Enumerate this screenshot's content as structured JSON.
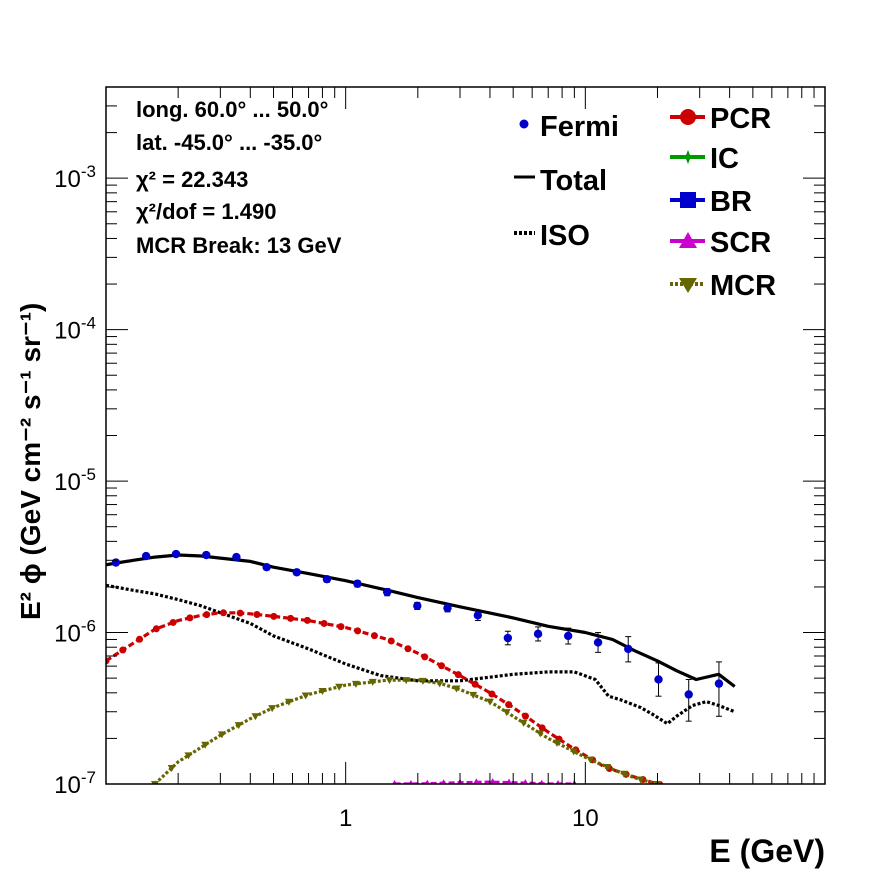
{
  "chart_data": {
    "type": "line",
    "xlabel": "E (GeV)",
    "ylabel": "E² ϕ (GeV cm⁻² s⁻¹ sr⁻¹)",
    "x_scale": "log",
    "y_scale": "log",
    "xlim": [
      0.1,
      100
    ],
    "ylim": [
      1e-07,
      0.004
    ],
    "x_tick_labels": [
      "1",
      "10"
    ],
    "y_tick_labels": [
      {
        "base": "10",
        "exp": "-7",
        "value": 1e-07
      },
      {
        "base": "10",
        "exp": "-6",
        "value": 1e-06
      },
      {
        "base": "10",
        "exp": "-5",
        "value": 1e-05
      },
      {
        "base": "10",
        "exp": "-4",
        "value": 0.0001
      },
      {
        "base": "10",
        "exp": "-3",
        "value": 0.001
      }
    ],
    "annotations": [
      "long. 60.0° ... 50.0°",
      "lat. -45.0° ... -35.0°",
      "χ² = 22.343",
      "χ²/dof = 1.490",
      "MCR Break: 13 GeV"
    ],
    "legend_left": [
      {
        "label": "Fermi",
        "marker": "dot"
      },
      {
        "label": "Total",
        "marker": "line"
      },
      {
        "label": "ISO",
        "marker": "dotted"
      }
    ],
    "legend_right": [
      {
        "label": "PCR",
        "color": "#cc0000",
        "marker": "circle"
      },
      {
        "label": "IC",
        "color": "#009900",
        "marker": "star"
      },
      {
        "label": "BR",
        "color": "#0000cc",
        "marker": "square"
      },
      {
        "label": "SCR",
        "color": "#cc00cc",
        "marker": "triangle-up"
      },
      {
        "label": "MCR",
        "color": "#666600",
        "marker": "triangle-down"
      }
    ],
    "fermi": {
      "name": "Fermi",
      "color": "#0000cc",
      "points": [
        {
          "x": 0.11,
          "y": 2.9e-06,
          "err": [
            2.8e-06,
            3e-06
          ]
        },
        {
          "x": 0.147,
          "y": 3.2e-06,
          "err": [
            3.1e-06,
            3.3e-06
          ]
        },
        {
          "x": 0.196,
          "y": 3.3e-06,
          "err": [
            3.2e-06,
            3.4e-06
          ]
        },
        {
          "x": 0.262,
          "y": 3.25e-06,
          "err": [
            3.15e-06,
            3.35e-06
          ]
        },
        {
          "x": 0.35,
          "y": 3.15e-06,
          "err": [
            3.05e-06,
            3.25e-06
          ]
        },
        {
          "x": 0.468,
          "y": 2.7e-06,
          "err": [
            2.6e-06,
            2.8e-06
          ]
        },
        {
          "x": 0.625,
          "y": 2.5e-06,
          "err": [
            2.4e-06,
            2.6e-06
          ]
        },
        {
          "x": 0.835,
          "y": 2.25e-06,
          "err": [
            2.15e-06,
            2.35e-06
          ]
        },
        {
          "x": 1.12,
          "y": 2.1e-06,
          "err": [
            2e-06,
            2.2e-06
          ]
        },
        {
          "x": 1.49,
          "y": 1.85e-06,
          "err": [
            1.75e-06,
            1.95e-06
          ]
        },
        {
          "x": 1.99,
          "y": 1.5e-06,
          "err": [
            1.42e-06,
            1.58e-06
          ]
        },
        {
          "x": 2.66,
          "y": 1.45e-06,
          "err": [
            1.37e-06,
            1.53e-06
          ]
        },
        {
          "x": 3.56,
          "y": 1.3e-06,
          "err": [
            1.2e-06,
            1.4e-06
          ]
        },
        {
          "x": 4.75,
          "y": 9.2e-07,
          "err": [
            8.3e-07,
            1.02e-06
          ]
        },
        {
          "x": 6.35,
          "y": 9.8e-07,
          "err": [
            8.8e-07,
            1.09e-06
          ]
        },
        {
          "x": 8.48,
          "y": 9.5e-07,
          "err": [
            8.4e-07,
            1.07e-06
          ]
        },
        {
          "x": 11.3,
          "y": 8.6e-07,
          "err": [
            7.4e-07,
            1e-06
          ]
        },
        {
          "x": 15.1,
          "y": 7.8e-07,
          "err": [
            6.4e-07,
            9.4e-07
          ]
        },
        {
          "x": 20.2,
          "y": 4.9e-07,
          "err": [
            3.8e-07,
            6.3e-07
          ]
        },
        {
          "x": 27.0,
          "y": 3.9e-07,
          "err": [
            2.6e-07,
            4.9e-07
          ]
        },
        {
          "x": 36.1,
          "y": 4.6e-07,
          "err": [
            2.8e-07,
            6.4e-07
          ]
        }
      ]
    },
    "series": [
      {
        "name": "Total",
        "color": "#000000",
        "style": "solid",
        "x": [
          0.1,
          0.13,
          0.16,
          0.2,
          0.25,
          0.3,
          0.4,
          0.5,
          0.7,
          1.0,
          1.5,
          2.0,
          3.0,
          5.0,
          7.0,
          10.0,
          13.0,
          16.0,
          20.0,
          24.0,
          29.0,
          36.0,
          42.0
        ],
        "y": [
          2.8e-06,
          3e-06,
          3.15e-06,
          3.25e-06,
          3.2e-06,
          3.1e-06,
          2.95e-06,
          2.7e-06,
          2.45e-06,
          2.2e-06,
          1.9e-06,
          1.7e-06,
          1.48e-06,
          1.25e-06,
          1.1e-06,
          1e-06,
          9e-07,
          7.6e-07,
          6.5e-07,
          5.6e-07,
          4.9e-07,
          5.3e-07,
          4.4e-07
        ]
      },
      {
        "name": "ISO",
        "color": "#000000",
        "style": "dotted",
        "x": [
          0.1,
          0.13,
          0.16,
          0.2,
          0.25,
          0.3,
          0.4,
          0.5,
          0.7,
          1.0,
          1.4,
          2.0,
          3.0,
          5.0,
          7.0,
          9.0,
          11.0,
          12.5,
          14.0,
          17.0,
          19.0,
          22.0,
          24.0,
          28.0,
          32.0,
          36.0,
          42.0
        ],
        "y": [
          2.05e-06,
          1.9e-06,
          1.8e-06,
          1.65e-06,
          1.5e-06,
          1.35e-06,
          1.15e-06,
          9.5e-07,
          7.8e-07,
          6.2e-07,
          5.2e-07,
          4.8e-07,
          4.8e-07,
          5.3e-07,
          5.5e-07,
          5.5e-07,
          4.9e-07,
          3.8e-07,
          3.6e-07,
          3.2e-07,
          2.9e-07,
          2.5e-07,
          2.8e-07,
          3.3e-07,
          3.5e-07,
          3.3e-07,
          3e-07
        ]
      },
      {
        "name": "PCR",
        "color": "#cc0000",
        "style": "dashed",
        "x": [
          0.1,
          0.13,
          0.16,
          0.2,
          0.25,
          0.3,
          0.35,
          0.4,
          0.5,
          0.7,
          1.0,
          1.5,
          2.0,
          3.0,
          4.0,
          5.0,
          7.0,
          9.0,
          12.0,
          15.0,
          20.0,
          24.0
        ],
        "y": [
          6.5e-07,
          8.5e-07,
          1.05e-06,
          1.2e-06,
          1.3e-06,
          1.35e-06,
          1.35e-06,
          1.33e-06,
          1.28e-06,
          1.2e-06,
          1.08e-06,
          9e-07,
          7.3e-07,
          5.2e-07,
          4e-07,
          3.2e-07,
          2.2e-07,
          1.7e-07,
          1.3e-07,
          1.15e-07,
          1e-07,
          9.5e-08
        ]
      },
      {
        "name": "MCR",
        "color": "#666600",
        "style": "dotted",
        "x": [
          0.16,
          0.2,
          0.25,
          0.3,
          0.4,
          0.5,
          0.7,
          1.0,
          1.5,
          2.0,
          2.5,
          3.0,
          4.0,
          5.0,
          7.0,
          10.0,
          13.0,
          16.0,
          20.0
        ],
        "y": [
          1e-07,
          1.4e-07,
          1.75e-07,
          2.1e-07,
          2.7e-07,
          3.2e-07,
          3.9e-07,
          4.5e-07,
          4.85e-07,
          4.85e-07,
          4.6e-07,
          4.2e-07,
          3.5e-07,
          2.8e-07,
          2e-07,
          1.5e-07,
          1.25e-07,
          1.1e-07,
          1e-07
        ]
      },
      {
        "name": "SCR",
        "color": "#cc00cc",
        "style": "dashed",
        "x": [
          1.6,
          2.0,
          3.0,
          4.0,
          5.0,
          6.0,
          7.0,
          8.0,
          9.0
        ],
        "y": [
          1e-07,
          1e-07,
          1.02e-07,
          1.03e-07,
          1.02e-07,
          1.01e-07,
          1e-07,
          1e-07,
          1e-07
        ]
      }
    ]
  }
}
